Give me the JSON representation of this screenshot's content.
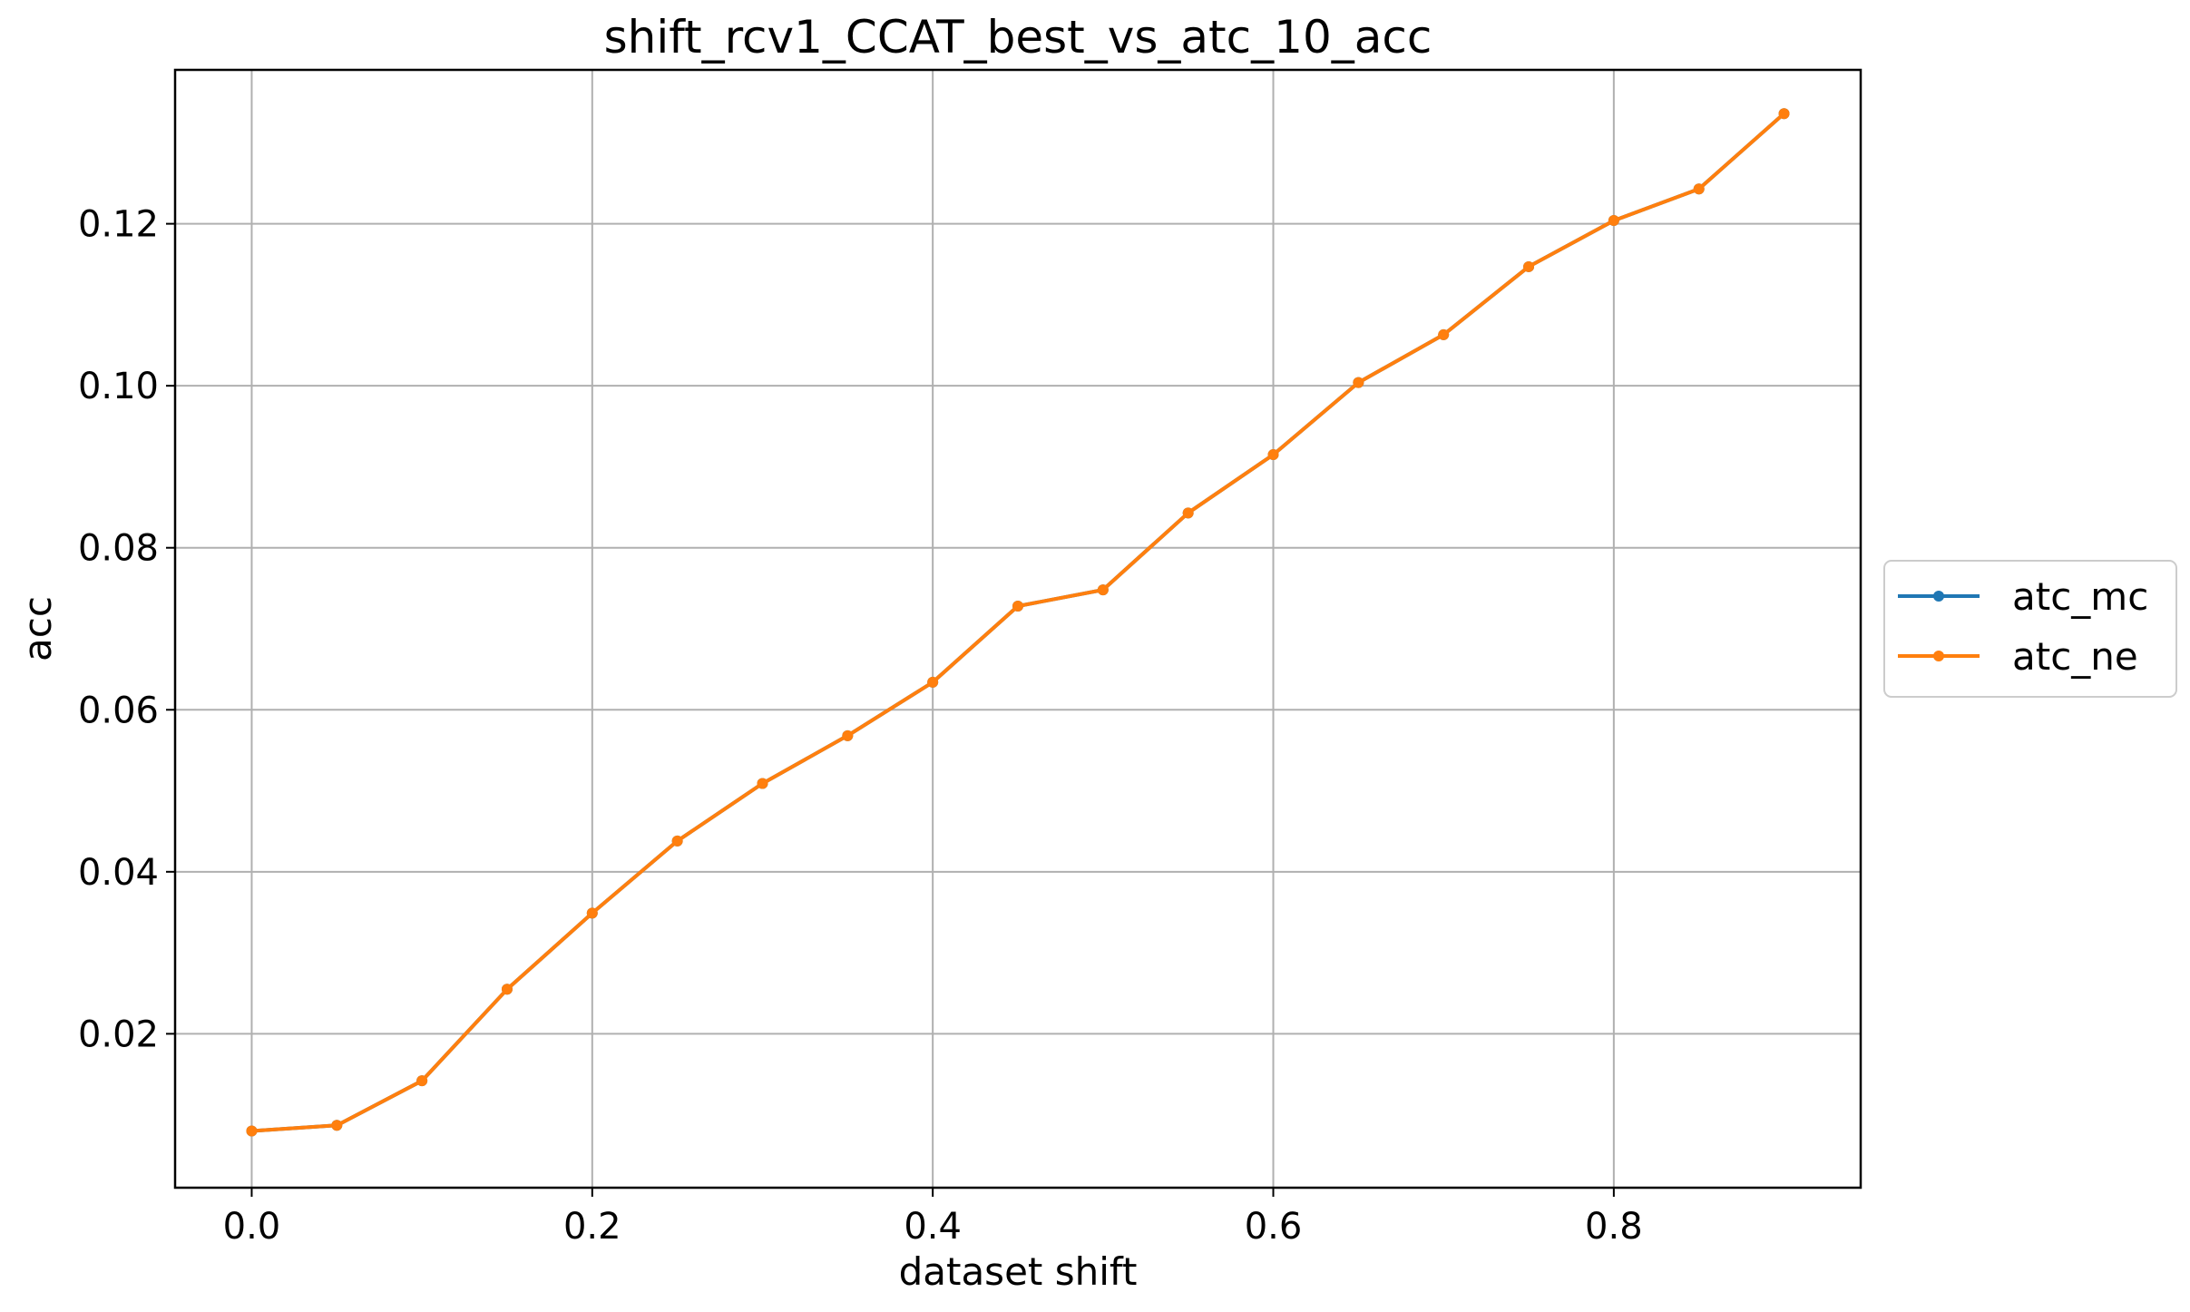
{
  "chart_data": {
    "type": "line",
    "title": "shift_rcv1_CCAT_best_vs_atc_10_acc",
    "xlabel": "dataset shift",
    "ylabel": "acc",
    "xlim": [
      -0.045,
      0.945
    ],
    "ylim": [
      0.001,
      0.139
    ],
    "xticks": [
      0.0,
      0.2,
      0.4,
      0.6,
      0.8
    ],
    "xtick_labels": [
      "0.0",
      "0.2",
      "0.4",
      "0.6",
      "0.8"
    ],
    "yticks": [
      0.02,
      0.04,
      0.06,
      0.08,
      0.1,
      0.12
    ],
    "ytick_labels": [
      "0.02",
      "0.04",
      "0.06",
      "0.08",
      "0.10",
      "0.12"
    ],
    "grid": true,
    "legend_position": "center-right-outside",
    "x": [
      0.0,
      0.05,
      0.1,
      0.15,
      0.2,
      0.25,
      0.3,
      0.35,
      0.4,
      0.45,
      0.5,
      0.55,
      0.6,
      0.65,
      0.7,
      0.75,
      0.8,
      0.85,
      0.9
    ],
    "series": [
      {
        "name": "atc_mc",
        "color": "#1f77b4",
        "values": [
          0.008,
          0.0087,
          0.0142,
          0.0255,
          0.0349,
          0.0438,
          0.0509,
          0.0568,
          0.0634,
          0.0728,
          0.0748,
          0.0843,
          0.0915,
          0.1004,
          0.1063,
          0.1147,
          0.1204,
          0.1243,
          0.1336
        ]
      },
      {
        "name": "atc_ne",
        "color": "#ff7f0e",
        "values": [
          0.008,
          0.0087,
          0.0142,
          0.0255,
          0.0349,
          0.0438,
          0.0509,
          0.0568,
          0.0634,
          0.0728,
          0.0748,
          0.0843,
          0.0915,
          0.1004,
          0.1063,
          0.1147,
          0.1204,
          0.1243,
          0.1336
        ]
      }
    ]
  }
}
